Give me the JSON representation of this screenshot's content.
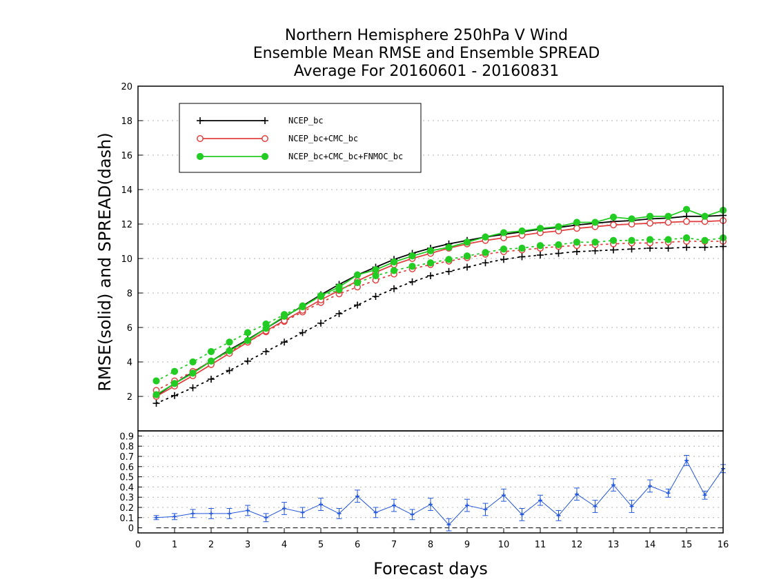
{
  "chart_data": {
    "type": "line",
    "title_lines": [
      "Northern Hemisphere 250hPa V Wind",
      "Ensemble Mean RMSE and Ensemble SPREAD",
      "Average For 20160601 - 20160831"
    ],
    "xlabel": "Forecast days",
    "ylabel": "RMSE(solid) and SPREAD(dash)",
    "xlim": [
      0,
      16
    ],
    "x_ticks": [
      0,
      1,
      2,
      3,
      4,
      5,
      6,
      7,
      8,
      9,
      10,
      11,
      12,
      13,
      14,
      15,
      16
    ],
    "top_panel": {
      "ylim": [
        0,
        20
      ],
      "y_ticks": [
        2,
        4,
        6,
        8,
        10,
        12,
        14,
        16,
        18,
        20
      ],
      "grid": "horizontal dotted",
      "legend_placement": "top-left",
      "x": [
        0.5,
        1,
        1.5,
        2,
        2.5,
        3,
        3.5,
        4,
        4.5,
        5,
        5.5,
        6,
        6.5,
        7,
        7.5,
        8,
        8.5,
        9,
        9.5,
        10,
        10.5,
        11,
        11.5,
        12,
        12.5,
        13,
        13.5,
        14,
        14.5,
        15,
        15.5,
        16
      ],
      "series": [
        {
          "name": "NCEP_bc",
          "color": "#000000",
          "marker": "plus",
          "rmse": [
            2.05,
            2.75,
            3.4,
            4.05,
            4.7,
            5.3,
            5.95,
            6.6,
            7.25,
            7.9,
            8.5,
            9.05,
            9.5,
            9.95,
            10.3,
            10.6,
            10.85,
            11.05,
            11.25,
            11.4,
            11.55,
            11.7,
            11.8,
            11.95,
            12.05,
            12.15,
            12.2,
            12.3,
            12.35,
            12.45,
            12.45,
            12.5
          ],
          "spread": [
            1.6,
            2.05,
            2.5,
            3.0,
            3.5,
            4.05,
            4.6,
            5.15,
            5.7,
            6.25,
            6.8,
            7.3,
            7.8,
            8.25,
            8.65,
            9.0,
            9.25,
            9.5,
            9.75,
            9.95,
            10.1,
            10.2,
            10.3,
            10.4,
            10.45,
            10.5,
            10.55,
            10.6,
            10.6,
            10.65,
            10.65,
            10.7
          ]
        },
        {
          "name": "NCEP_bc+CMC_bc",
          "color": "#e04040",
          "marker": "open-circle",
          "rmse": [
            2.0,
            2.6,
            3.2,
            3.85,
            4.5,
            5.15,
            5.8,
            6.4,
            7.0,
            7.6,
            8.15,
            8.7,
            9.2,
            9.65,
            10.0,
            10.3,
            10.6,
            10.85,
            11.05,
            11.2,
            11.35,
            11.5,
            11.6,
            11.75,
            11.85,
            11.95,
            12.0,
            12.05,
            12.1,
            12.15,
            12.15,
            12.2
          ],
          "spread": [
            2.35,
            2.9,
            3.45,
            4.05,
            4.6,
            5.15,
            5.75,
            6.35,
            6.9,
            7.45,
            7.95,
            8.35,
            8.75,
            9.1,
            9.4,
            9.65,
            9.85,
            10.05,
            10.25,
            10.4,
            10.5,
            10.6,
            10.7,
            10.75,
            10.8,
            10.85,
            10.9,
            10.9,
            10.95,
            11.0,
            11.0,
            11.0
          ]
        },
        {
          "name": "NCEP_bc+CMC_bc+FNMOC_bc",
          "color": "#22cc22",
          "marker": "filled-circle",
          "rmse": [
            2.1,
            2.75,
            3.35,
            4.05,
            4.65,
            5.25,
            5.95,
            6.65,
            7.2,
            7.85,
            8.35,
            9.05,
            9.35,
            9.8,
            10.15,
            10.45,
            10.65,
            10.95,
            11.25,
            11.5,
            11.6,
            11.75,
            11.85,
            12.1,
            12.1,
            12.4,
            12.3,
            12.45,
            12.45,
            12.85,
            12.45,
            12.8
          ],
          "spread": [
            2.9,
            3.45,
            4.0,
            4.6,
            5.15,
            5.7,
            6.2,
            6.75,
            7.25,
            7.8,
            8.2,
            8.6,
            9.0,
            9.3,
            9.55,
            9.75,
            9.95,
            10.15,
            10.35,
            10.55,
            10.6,
            10.75,
            10.8,
            10.95,
            10.95,
            11.05,
            11.05,
            11.1,
            11.1,
            11.2,
            11.05,
            11.2
          ]
        }
      ]
    },
    "bottom_panel": {
      "ylim": [
        -0.05,
        0.95
      ],
      "y_ticks": [
        0,
        0.1,
        0.2,
        0.3,
        0.4,
        0.5,
        0.6,
        0.7,
        0.8,
        0.9
      ],
      "y_tick_labels": [
        "0",
        "0.1",
        "0.2",
        "0.3",
        "0.4",
        "0.5",
        "0.6",
        "0.7",
        "0.8",
        "0.9"
      ],
      "grid": "horizontal dotted",
      "zero_line": "dashed",
      "color": "#2255dd",
      "x": [
        0.5,
        1,
        1.5,
        2,
        2.5,
        3,
        3.5,
        4,
        4.5,
        5,
        5.5,
        6,
        6.5,
        7,
        7.5,
        8,
        8.5,
        9,
        9.5,
        10,
        10.5,
        11,
        11.5,
        12,
        12.5,
        13,
        13.5,
        14,
        14.5,
        15,
        15.5,
        16
      ],
      "values": [
        0.1,
        0.11,
        0.14,
        0.14,
        0.14,
        0.17,
        0.1,
        0.19,
        0.15,
        0.23,
        0.14,
        0.31,
        0.15,
        0.22,
        0.13,
        0.23,
        0.03,
        0.22,
        0.18,
        0.32,
        0.13,
        0.27,
        0.12,
        0.33,
        0.21,
        0.42,
        0.21,
        0.41,
        0.34,
        0.66,
        0.32,
        0.58
      ],
      "errors": [
        0.02,
        0.03,
        0.04,
        0.05,
        0.05,
        0.05,
        0.04,
        0.06,
        0.05,
        0.06,
        0.05,
        0.06,
        0.05,
        0.06,
        0.05,
        0.06,
        0.06,
        0.06,
        0.06,
        0.06,
        0.06,
        0.05,
        0.05,
        0.06,
        0.06,
        0.06,
        0.06,
        0.06,
        0.04,
        0.05,
        0.04,
        0.04
      ]
    }
  }
}
